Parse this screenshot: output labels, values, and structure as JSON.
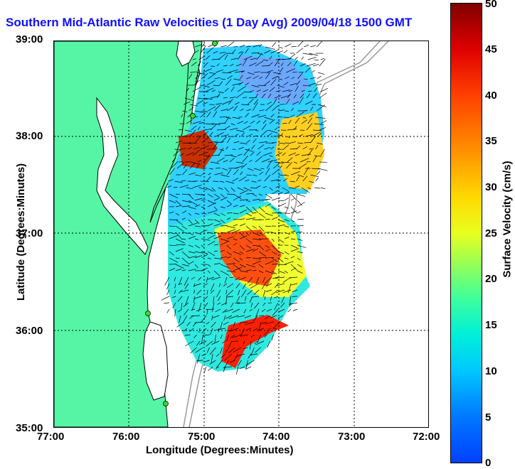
{
  "title": "Southern Mid-Atlantic Raw Velocities (1 Day Avg) 2009/04/18 1500 GMT",
  "x_axis": {
    "label": "Longitude (Degrees:Minutes)",
    "ticks": [
      "77:00",
      "76:00",
      "75:00",
      "74:00",
      "73:00",
      "72:00"
    ]
  },
  "y_axis": {
    "label": "Latitude (Degrees:Minutes)",
    "ticks": [
      "35:00",
      "36:00",
      "37:00",
      "38:00",
      "39:00"
    ]
  },
  "colorbar": {
    "label": "Surface Velocity (cm/s)",
    "ticks": [
      "0",
      "5",
      "10",
      "15",
      "20",
      "25",
      "30",
      "35",
      "40",
      "45",
      "50"
    ],
    "min": 0,
    "max": 50
  },
  "colors": {
    "land": "#55f5a5",
    "title": "#1010ff",
    "station": "#30e030"
  }
}
